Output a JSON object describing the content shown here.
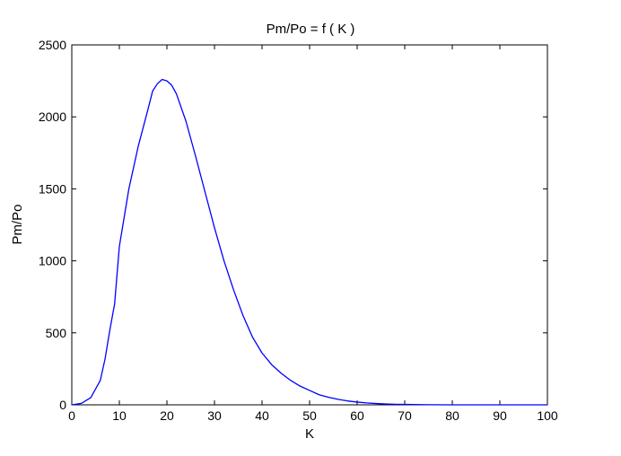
{
  "chart_data": {
    "type": "line",
    "title": "Pm/Po = f ( K )",
    "xlabel": "K",
    "ylabel": "Pm/Po",
    "xlim": [
      0,
      100
    ],
    "ylim": [
      0,
      2500
    ],
    "x_ticks": [
      "0",
      "10",
      "20",
      "30",
      "40",
      "50",
      "60",
      "70",
      "80",
      "90",
      "100"
    ],
    "y_ticks": [
      "0",
      "500",
      "1000",
      "1500",
      "2000",
      "2500"
    ],
    "grid": false,
    "legend": "none",
    "line_color": "#0000ff",
    "series": [
      {
        "x": [
          0,
          2,
          4,
          6,
          7,
          8,
          9,
          10,
          12,
          14,
          16,
          17,
          18,
          19,
          20,
          21,
          22,
          24,
          26,
          28,
          30,
          32,
          34,
          36,
          38,
          40,
          42,
          44,
          46,
          48,
          50,
          52,
          54,
          56,
          58,
          60,
          62,
          64,
          66,
          68,
          70,
          75,
          80,
          85,
          90,
          95,
          100
        ],
        "y": [
          0,
          10,
          50,
          170,
          320,
          520,
          700,
          1100,
          1500,
          1800,
          2050,
          2180,
          2230,
          2260,
          2250,
          2220,
          2160,
          1970,
          1730,
          1480,
          1230,
          1000,
          800,
          620,
          470,
          360,
          280,
          220,
          170,
          130,
          100,
          70,
          52,
          38,
          27,
          19,
          13,
          9,
          6,
          4,
          3,
          1,
          0,
          0,
          0,
          0,
          0
        ]
      }
    ]
  }
}
